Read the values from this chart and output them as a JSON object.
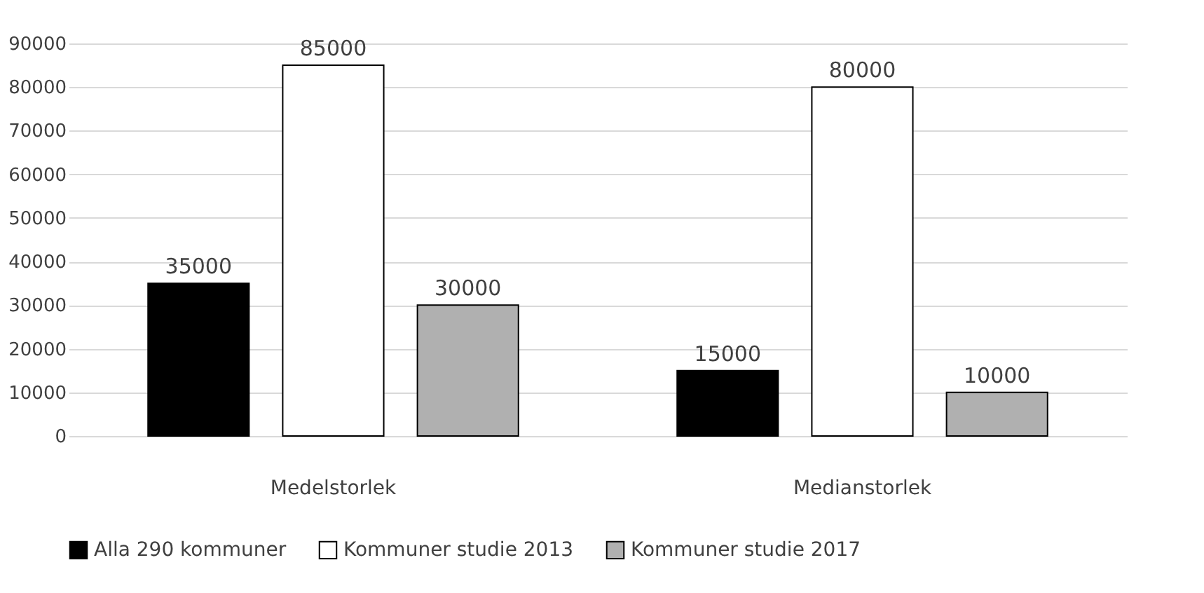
{
  "chart_data": {
    "type": "bar",
    "categories": [
      "Medelstorlek",
      "Medianstorlek"
    ],
    "series": [
      {
        "name": "Alla 290 kommuner",
        "color": "#000000",
        "values": [
          35000,
          15000
        ]
      },
      {
        "name": "Kommuner studie 2013",
        "color": "#ffffff",
        "values": [
          85000,
          80000
        ]
      },
      {
        "name": "Kommuner studie 2017",
        "color": "#b0b0b0",
        "values": [
          30000,
          10000
        ]
      }
    ],
    "ylim": [
      0,
      90000
    ],
    "yticks": [
      0,
      10000,
      20000,
      30000,
      40000,
      50000,
      60000,
      70000,
      80000,
      90000
    ],
    "grid": "y",
    "legend": "bottom",
    "data_labels": true
  }
}
